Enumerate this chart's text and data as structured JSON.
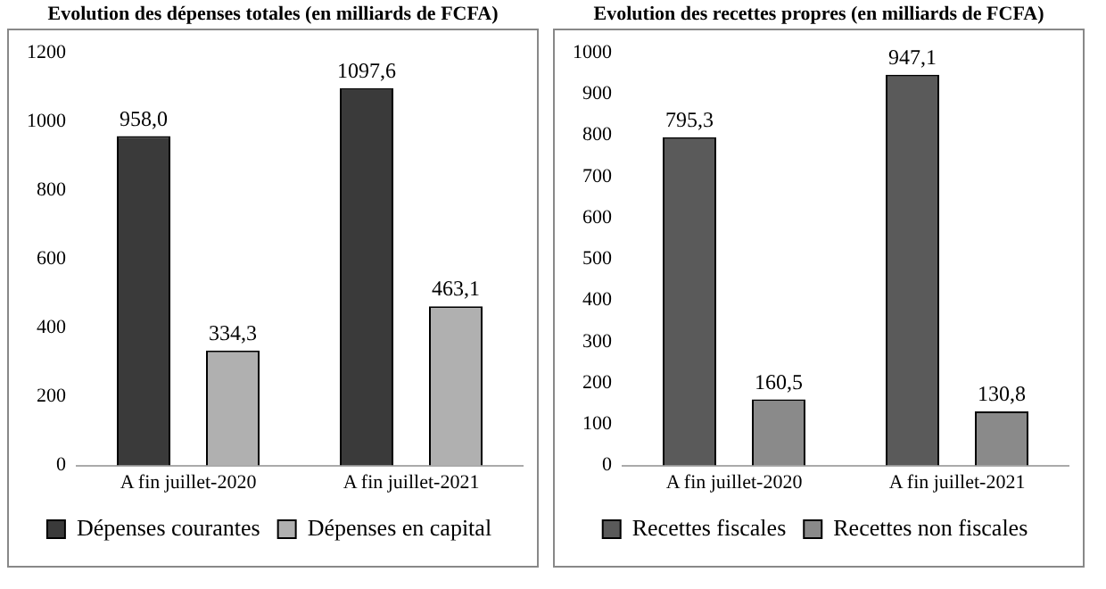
{
  "chart_data": [
    {
      "type": "bar",
      "title": "Evolution des dépenses totales (en milliards de FCFA)",
      "categories": [
        "A fin juillet-2020",
        "A fin juillet-2021"
      ],
      "series": [
        {
          "name": "Dépenses courantes",
          "color": "#3a3a3a",
          "values": [
            958.0,
            1097.6
          ],
          "value_labels": [
            "958,0",
            "1097,6"
          ]
        },
        {
          "name": "Dépenses en capital",
          "color": "#b0b0b0",
          "values": [
            334.3,
            463.1
          ],
          "value_labels": [
            "334,3",
            "463,1"
          ]
        }
      ],
      "ylim": [
        0,
        1200
      ],
      "yticks": [
        0,
        200,
        400,
        600,
        800,
        1000,
        1200
      ],
      "grid": false,
      "legend": "bottom"
    },
    {
      "type": "bar",
      "title": "Evolution des recettes propres (en milliards de FCFA)",
      "categories": [
        "A fin juillet-2020",
        "A fin juillet-2021"
      ],
      "series": [
        {
          "name": "Recettes fiscales",
          "color": "#5a5a5a",
          "values": [
            795.3,
            947.1
          ],
          "value_labels": [
            "795,3",
            "947,1"
          ]
        },
        {
          "name": "Recettes non fiscales",
          "color": "#8a8a8a",
          "values": [
            160.5,
            130.8
          ],
          "value_labels": [
            "160,5",
            "130,8"
          ]
        }
      ],
      "ylim": [
        0,
        1000
      ],
      "yticks": [
        0,
        100,
        200,
        300,
        400,
        500,
        600,
        700,
        800,
        900,
        1000
      ],
      "grid": false,
      "legend": "bottom"
    }
  ]
}
